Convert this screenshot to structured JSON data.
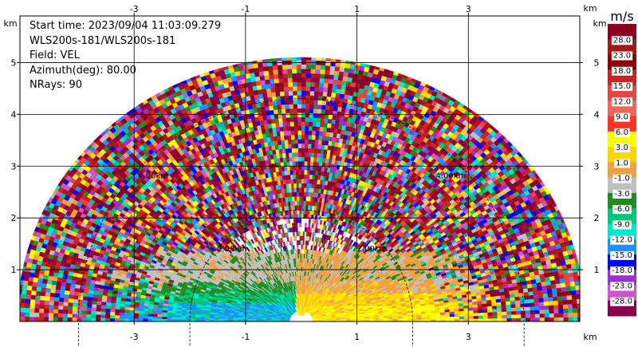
{
  "info": {
    "start_time": "Start time: 2023/09/04 11:03:09.279",
    "instrument": "WLS200s-181/WLS200s-181",
    "field": "Field: VEL",
    "azimuth": "Azimuth(deg): 80.00",
    "nrays": "NRays: 90"
  },
  "colorbar": {
    "unit": "m/s",
    "levels": [
      "28.0",
      "23.0",
      "18.0",
      "15.0",
      "12.0",
      "9.0",
      "6.0",
      "3.0",
      "1.0",
      "-1.0",
      "-3.0",
      "-6.0",
      "-9.0",
      "-12.0",
      "-15.0",
      "-18.0",
      "-23.0",
      "-28.0"
    ],
    "colors": [
      "#8b0020",
      "#a51818",
      "#8b0000",
      "#cc2222",
      "#e84444",
      "#f26655",
      "#ff3322",
      "#ffff00",
      "#ffd700",
      "#f0a040",
      "#c0c0c0",
      "#228b22",
      "#00c878",
      "#00e6d2",
      "#1e90ff",
      "#0000ff",
      "#9932cc",
      "#cc55cc",
      "#8b004a"
    ]
  },
  "chart_data": {
    "type": "heatmap",
    "title": "",
    "xlabel": "km",
    "ylabel": "km",
    "x_unit": "km",
    "y_unit": "km",
    "xlim": [
      -5.05,
      5.0
    ],
    "ylim": [
      0,
      5.9
    ],
    "x_ticks": [
      "-3",
      "-1",
      "1",
      "3"
    ],
    "y_ticks": [
      "1",
      "2",
      "3",
      "4",
      "5"
    ],
    "x_tick_values": [
      -3,
      -1,
      1,
      3
    ],
    "y_tick_values": [
      1,
      2,
      3,
      4,
      5
    ],
    "max_range_km": 5.1,
    "range_rings": [
      {
        "radius_km": 2.0,
        "label": "2.00km"
      },
      {
        "radius_km": 4.0,
        "label": "4.00km"
      }
    ],
    "grid": true,
    "projection": "RHI half-disk (elevation 0-180 deg)",
    "colorbar_position": "right"
  }
}
